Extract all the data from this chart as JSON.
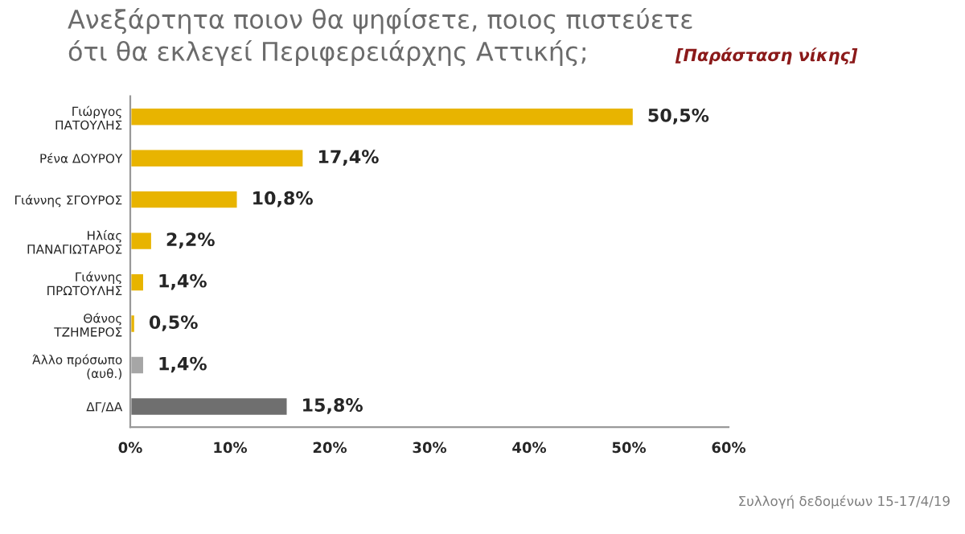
{
  "chart_data": {
    "type": "bar",
    "orientation": "horizontal",
    "title": "Ανεξάρτητα ποιον θα ψηφίσετε, ποιος πιστεύετε\nότι θα εκλεγεί Περιφερειάρχης Αττικής;",
    "subtitle": "[Παράσταση νίκης]",
    "categories": [
      "Γιώργος\nΠΑΤΟΥΛΗΣ",
      "Ρένα ΔΟΥΡΟΥ",
      "Γιάννης ΣΓΟΥΡΟΣ",
      "Ηλίας\nΠΑΝΑΓΙΩΤΑΡΟΣ",
      "Γιάννης\nΠΡΩΤΟΥΛΗΣ",
      "Θάνος\nΤΖΗΜΕΡΟΣ",
      "Άλλο πρόσωπο\n(αυθ.)",
      "ΔΓ/ΔΑ"
    ],
    "values": [
      50.5,
      17.4,
      10.8,
      2.2,
      1.4,
      0.5,
      1.4,
      15.8
    ],
    "colors": [
      "#e8b400",
      "#e8b400",
      "#e8b400",
      "#e8b400",
      "#e8b400",
      "#e8b400",
      "#a6a6a6",
      "#6f6f6f"
    ],
    "value_labels": [
      "50,5%",
      "17,4%",
      "10,8%",
      "2,2%",
      "1,4%",
      "0,5%",
      "1,4%",
      "15,8%"
    ],
    "xlim": [
      0,
      60
    ],
    "xticks": [
      {
        "value": 0,
        "label": "0%"
      },
      {
        "value": 10,
        "label": "10%"
      },
      {
        "value": 20,
        "label": "20%"
      },
      {
        "value": 30,
        "label": "30%"
      },
      {
        "value": 40,
        "label": "40%"
      },
      {
        "value": 50,
        "label": "50%"
      },
      {
        "value": 60,
        "label": "60%"
      }
    ],
    "grid": false,
    "annotations": [
      "Συλλογή δεδομένων 15-17/4/19"
    ]
  }
}
